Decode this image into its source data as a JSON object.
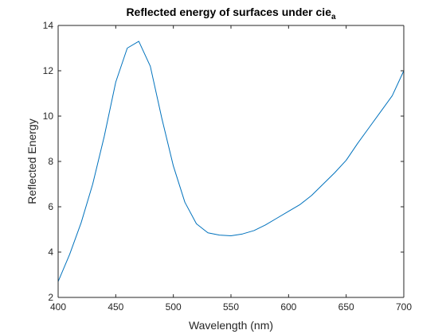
{
  "chart_data": {
    "type": "line",
    "title": "Reflected energy of surfaces under cie",
    "title_subscript": "a",
    "xlabel": "Wavelength (nm)",
    "ylabel": "Reflected Energy",
    "xlim": [
      400,
      700
    ],
    "ylim": [
      2,
      14
    ],
    "xticks": [
      400,
      450,
      500,
      550,
      600,
      650,
      700
    ],
    "yticks": [
      2,
      4,
      6,
      8,
      10,
      12,
      14
    ],
    "grid": false,
    "line_color": "#0072BD",
    "axis_color": "#262626",
    "series": [
      {
        "x": [
          400,
          410,
          420,
          430,
          440,
          450,
          460,
          470,
          480,
          490,
          500,
          510,
          520,
          530,
          540,
          550,
          560,
          570,
          580,
          590,
          600,
          610,
          620,
          630,
          640,
          650,
          660,
          670,
          680,
          690,
          700
        ],
        "y": [
          2.7,
          3.9,
          5.3,
          7.0,
          9.1,
          11.5,
          13.0,
          13.3,
          12.2,
          9.9,
          7.8,
          6.2,
          5.25,
          4.85,
          4.75,
          4.72,
          4.8,
          4.95,
          5.2,
          5.5,
          5.8,
          6.1,
          6.5,
          7.0,
          7.5,
          8.05,
          8.8,
          9.5,
          10.2,
          10.9,
          12.0
        ]
      }
    ]
  }
}
